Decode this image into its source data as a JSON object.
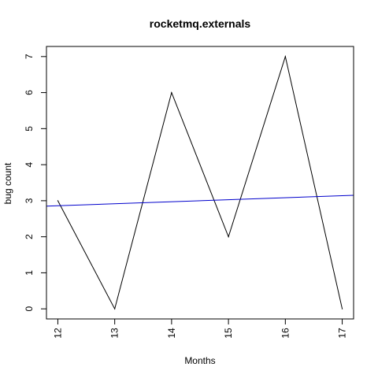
{
  "chart_data": {
    "type": "line",
    "title": "rocketmq.externals",
    "xlabel": "Months",
    "ylabel": "bug count",
    "x": [
      12,
      13,
      14,
      15,
      16,
      17
    ],
    "xticks": [
      "12",
      "13",
      "14",
      "15",
      "16",
      "17"
    ],
    "yticks": [
      "0",
      "1",
      "2",
      "3",
      "4",
      "5",
      "6",
      "7"
    ],
    "xlim": [
      11.8,
      17.2
    ],
    "ylim": [
      -0.28,
      7.28
    ],
    "series": [
      {
        "values": [
          3,
          0,
          6,
          2,
          7,
          0
        ],
        "color": "#000000"
      }
    ],
    "trend": {
      "x": [
        11.8,
        17.2
      ],
      "y": [
        2.85,
        3.15
      ],
      "color": "#0000cc"
    },
    "grid": false
  }
}
